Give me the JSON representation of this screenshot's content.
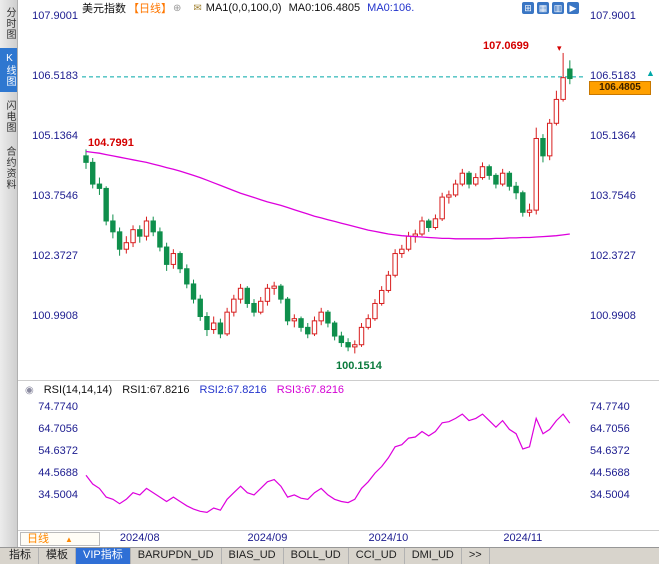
{
  "sidebar": {
    "items": [
      {
        "label": "分时图",
        "active": false
      },
      {
        "label": "K线图",
        "active": true
      },
      {
        "label": "闪电图",
        "active": false
      },
      {
        "label": "合约资料",
        "active": false
      }
    ]
  },
  "header": {
    "symbol": "美元指数",
    "period": "【日线】",
    "plus_icon": "⊕",
    "formula_icon": "✉",
    "ma_settings": "MA1(0,0,100,0)",
    "ma_value_1": "MA0:106.4805",
    "ma_value_2": "MA0:106.",
    "window_icons": [
      {
        "name": "tile-windows-icon",
        "glyph": "⊞"
      },
      {
        "name": "cascade-windows-icon",
        "glyph": "▦"
      },
      {
        "name": "grid-layout-icon",
        "glyph": "▥"
      },
      {
        "name": "next-chart-icon",
        "glyph": "▶"
      }
    ]
  },
  "colors": {
    "up": "#d81e1e",
    "down": "#0f8f4c",
    "ma": "#dd00dd",
    "rsi": "#dd00dd",
    "dashed_line": "#00a8a8",
    "axis_text": "#1b1b8f",
    "annotation_red": "#d40000",
    "annotation_green": "#0a7a3c",
    "tag_bg": "#ffa000",
    "active_tab": "#2f6fd6"
  },
  "chart_data": [
    {
      "type": "candlestick",
      "symbol": "美元指数",
      "period": "日线",
      "y_ticks": [
        "107.9001",
        "106.5183",
        "105.1364",
        "103.7546",
        "102.3727",
        "100.9908"
      ],
      "dashed_level": 106.5183,
      "last_price_tag": "106.4805",
      "price_arrow": "▲",
      "annotations": [
        {
          "text": "104.7991",
          "color": "red",
          "meaning": "ma-start-value"
        },
        {
          "text": "107.0699",
          "color": "red",
          "meaning": "period-high"
        },
        {
          "text": "100.1514",
          "color": "green",
          "meaning": "period-low"
        }
      ],
      "x_ticks": [
        {
          "label": "2024/08",
          "index": 8
        },
        {
          "label": "2024/09",
          "index": 27
        },
        {
          "label": "2024/10",
          "index": 45
        },
        {
          "label": "2024/11",
          "index": 65
        }
      ],
      "candles": [
        [
          104.7,
          104.85,
          104.4,
          104.55
        ],
        [
          104.55,
          104.65,
          103.95,
          104.05
        ],
        [
          104.05,
          104.2,
          103.8,
          103.95
        ],
        [
          103.95,
          104.0,
          103.1,
          103.2
        ],
        [
          103.2,
          103.35,
          102.8,
          102.95
        ],
        [
          102.95,
          103.05,
          102.4,
          102.55
        ],
        [
          102.55,
          102.85,
          102.45,
          102.7
        ],
        [
          102.7,
          103.1,
          102.6,
          103.0
        ],
        [
          103.0,
          103.1,
          102.7,
          102.85
        ],
        [
          102.85,
          103.3,
          102.75,
          103.2
        ],
        [
          103.2,
          103.3,
          102.85,
          102.95
        ],
        [
          102.95,
          103.05,
          102.5,
          102.6
        ],
        [
          102.6,
          102.7,
          102.05,
          102.2
        ],
        [
          102.2,
          102.55,
          102.1,
          102.45
        ],
        [
          102.45,
          102.5,
          102.0,
          102.1
        ],
        [
          102.1,
          102.2,
          101.65,
          101.75
        ],
        [
          101.75,
          101.85,
          101.3,
          101.4
        ],
        [
          101.4,
          101.5,
          100.9,
          101.0
        ],
        [
          101.0,
          101.1,
          100.55,
          100.7
        ],
        [
          100.7,
          101.0,
          100.6,
          100.85
        ],
        [
          100.85,
          100.95,
          100.5,
          100.6
        ],
        [
          100.6,
          101.2,
          100.55,
          101.1
        ],
        [
          101.1,
          101.5,
          101.0,
          101.4
        ],
        [
          101.4,
          101.75,
          101.3,
          101.65
        ],
        [
          101.65,
          101.7,
          101.2,
          101.3
        ],
        [
          101.3,
          101.4,
          101.0,
          101.1
        ],
        [
          101.1,
          101.45,
          101.05,
          101.35
        ],
        [
          101.35,
          101.75,
          101.25,
          101.65
        ],
        [
          101.65,
          101.8,
          101.5,
          101.7
        ],
        [
          101.7,
          101.75,
          101.3,
          101.4
        ],
        [
          101.4,
          101.45,
          100.8,
          100.9
        ],
        [
          100.9,
          101.05,
          100.75,
          100.95
        ],
        [
          100.95,
          101.0,
          100.65,
          100.75
        ],
        [
          100.75,
          100.85,
          100.5,
          100.6
        ],
        [
          100.6,
          101.0,
          100.55,
          100.9
        ],
        [
          100.9,
          101.2,
          100.8,
          101.1
        ],
        [
          101.1,
          101.15,
          100.75,
          100.85
        ],
        [
          100.85,
          100.9,
          100.45,
          100.55
        ],
        [
          100.55,
          100.65,
          100.3,
          100.4
        ],
        [
          100.4,
          100.5,
          100.2,
          100.3
        ],
        [
          100.3,
          100.45,
          100.15,
          100.35
        ],
        [
          100.35,
          100.85,
          100.3,
          100.75
        ],
        [
          100.75,
          101.05,
          100.7,
          100.95
        ],
        [
          100.95,
          101.4,
          100.9,
          101.3
        ],
        [
          101.3,
          101.7,
          101.25,
          101.6
        ],
        [
          101.6,
          102.05,
          101.55,
          101.95
        ],
        [
          101.95,
          102.55,
          101.9,
          102.45
        ],
        [
          102.45,
          102.65,
          102.35,
          102.55
        ],
        [
          102.55,
          102.95,
          102.5,
          102.85
        ],
        [
          102.85,
          103.0,
          102.7,
          102.9
        ],
        [
          102.9,
          103.3,
          102.85,
          103.2
        ],
        [
          103.2,
          103.25,
          102.95,
          103.05
        ],
        [
          103.05,
          103.35,
          103.0,
          103.25
        ],
        [
          103.25,
          103.85,
          103.2,
          103.75
        ],
        [
          103.75,
          103.9,
          103.6,
          103.8
        ],
        [
          103.8,
          104.15,
          103.75,
          104.05
        ],
        [
          104.05,
          104.4,
          104.0,
          104.3
        ],
        [
          104.3,
          104.35,
          103.95,
          104.05
        ],
        [
          104.05,
          104.3,
          104.0,
          104.2
        ],
        [
          104.2,
          104.55,
          104.15,
          104.45
        ],
        [
          104.45,
          104.5,
          104.15,
          104.25
        ],
        [
          104.25,
          104.3,
          103.95,
          104.05
        ],
        [
          104.05,
          104.4,
          104.0,
          104.3
        ],
        [
          104.3,
          104.35,
          103.9,
          104.0
        ],
        [
          104.0,
          104.1,
          103.7,
          103.85
        ],
        [
          103.85,
          103.9,
          103.3,
          103.4
        ],
        [
          103.4,
          103.6,
          103.3,
          103.45
        ],
        [
          103.45,
          105.35,
          103.35,
          105.1
        ],
        [
          105.1,
          105.2,
          104.55,
          104.7
        ],
        [
          104.7,
          105.55,
          104.6,
          105.45
        ],
        [
          105.45,
          106.2,
          105.4,
          106.0
        ],
        [
          106.0,
          107.07,
          105.95,
          106.5
        ],
        [
          106.7,
          106.9,
          106.35,
          106.48
        ]
      ],
      "ma100": [
        104.8,
        104.78,
        104.76,
        104.73,
        104.7,
        104.67,
        104.64,
        104.61,
        104.58,
        104.55,
        104.51,
        104.47,
        104.43,
        104.39,
        104.35,
        104.3,
        104.25,
        104.2,
        104.14,
        104.08,
        104.02,
        103.96,
        103.9,
        103.84,
        103.79,
        103.74,
        103.69,
        103.64,
        103.6,
        103.56,
        103.51,
        103.46,
        103.41,
        103.36,
        103.31,
        103.27,
        103.23,
        103.19,
        103.15,
        103.11,
        103.07,
        103.03,
        102.99,
        102.96,
        102.93,
        102.9,
        102.88,
        102.86,
        102.85,
        102.84,
        102.83,
        102.82,
        102.81,
        102.8,
        102.8,
        102.79,
        102.79,
        102.79,
        102.79,
        102.79,
        102.79,
        102.8,
        102.8,
        102.81,
        102.81,
        102.82,
        102.82,
        102.83,
        102.84,
        102.85,
        102.86,
        102.88,
        102.9
      ]
    },
    {
      "type": "line",
      "name": "RSI",
      "label": "RSI(14,14,14)",
      "series_labels": [
        {
          "text": "RSI1:67.8216"
        },
        {
          "text": "RSI2:67.8216"
        },
        {
          "text": "RSI3:67.8216"
        }
      ],
      "y_ticks": [
        "74.7740",
        "64.7056",
        "54.6372",
        "44.5688",
        "34.5004"
      ],
      "values": [
        44,
        40,
        38,
        34,
        33,
        31,
        33,
        36,
        35,
        38,
        36,
        34,
        32,
        34,
        32,
        30,
        28.5,
        27.5,
        27,
        29,
        28,
        33,
        36,
        39,
        36,
        35,
        38,
        41,
        42,
        39,
        34,
        35,
        33.5,
        33,
        36,
        38,
        35,
        33,
        32,
        31.5,
        33,
        38,
        41,
        45,
        48,
        52,
        57,
        58,
        61,
        61.5,
        64,
        62,
        64,
        68,
        68.5,
        70,
        72,
        69,
        70,
        72,
        69,
        66,
        69,
        65,
        63,
        56,
        57,
        70,
        63,
        65,
        69,
        72,
        67.82
      ]
    }
  ],
  "bottom": {
    "period_selector": {
      "label": "日线",
      "arrow": "▲"
    },
    "tabs": [
      {
        "label": "指标",
        "active": false
      },
      {
        "label": "模板",
        "active": false
      },
      {
        "label": "VIP指标",
        "active": true
      },
      {
        "label": "BARUPDN_UD",
        "active": false
      },
      {
        "label": "BIAS_UD",
        "active": false
      },
      {
        "label": "BOLL_UD",
        "active": false
      },
      {
        "label": "CCI_UD",
        "active": false
      },
      {
        "label": "DMI_UD",
        "active": false
      },
      {
        "label": ">>",
        "active": false
      }
    ]
  }
}
